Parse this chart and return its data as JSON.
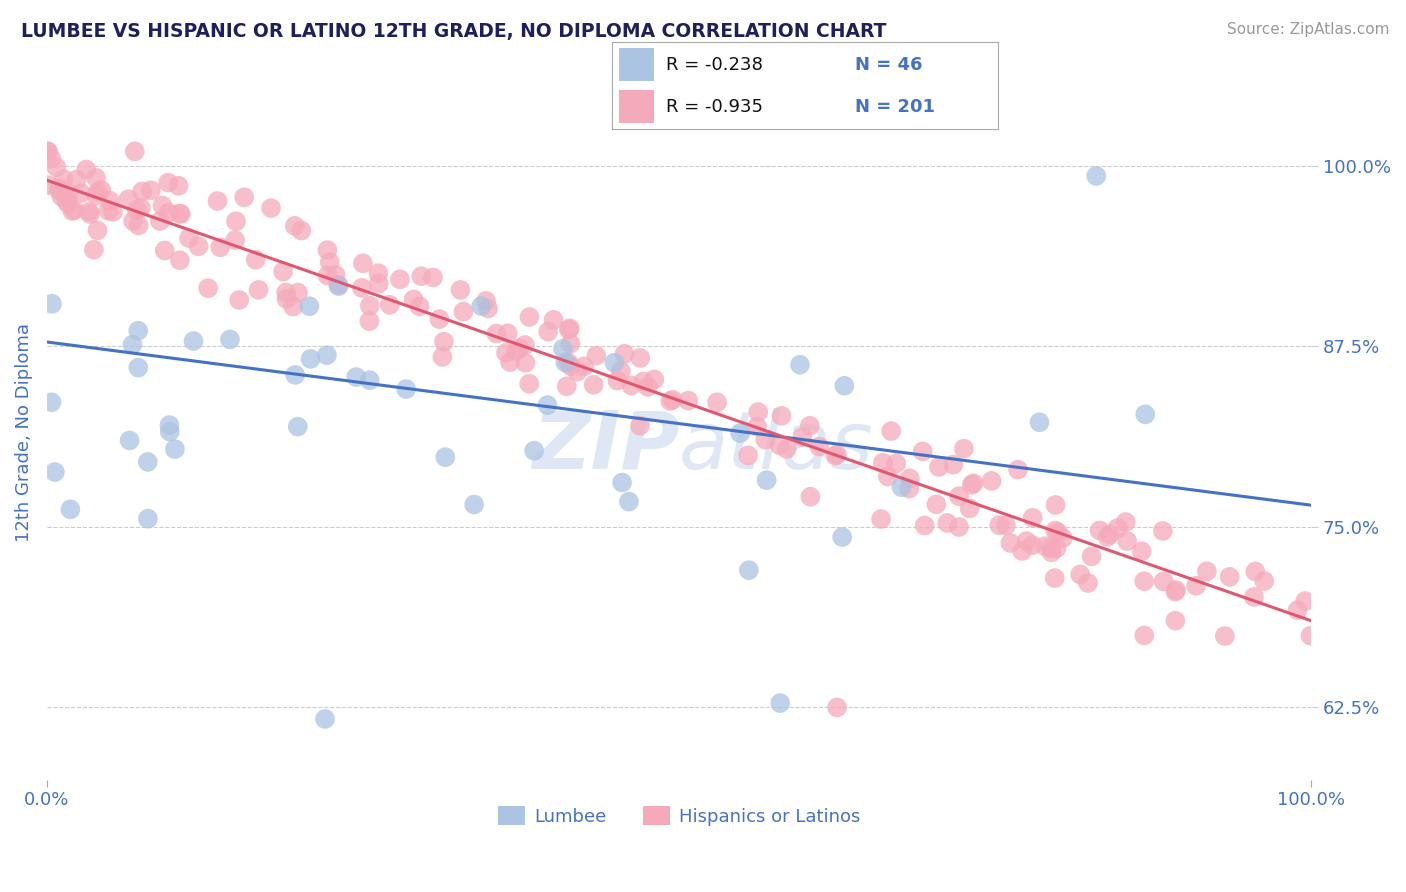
{
  "title": "LUMBEE VS HISPANIC OR LATINO 12TH GRADE, NO DIPLOMA CORRELATION CHART",
  "source": "Source: ZipAtlas.com",
  "ylabel": "12th Grade, No Diploma",
  "ytick_labels": [
    "62.5%",
    "75.0%",
    "87.5%",
    "100.0%"
  ],
  "ytick_values": [
    0.625,
    0.75,
    0.875,
    1.0
  ],
  "xlim": [
    0.0,
    1.0
  ],
  "ylim": [
    0.575,
    1.055
  ],
  "legend_lumbee_R": "-0.238",
  "legend_lumbee_N": "46",
  "legend_hispanic_R": "-0.935",
  "legend_hispanic_N": "201",
  "lumbee_color": "#aac4e2",
  "hispanic_color": "#f5aabb",
  "lumbee_line_color": "#4472c4",
  "hispanic_line_color": "#e05870",
  "title_color": "#1f1f5e",
  "label_color": "#4472c4",
  "r_value_color": "#111111",
  "background_color": "#ffffff",
  "watermark_color": "#c8d8ec",
  "lumbee_trend_start_y": 0.878,
  "lumbee_trend_end_y": 0.765,
  "hispanic_trend_start_y": 0.99,
  "hispanic_trend_end_y": 0.685
}
